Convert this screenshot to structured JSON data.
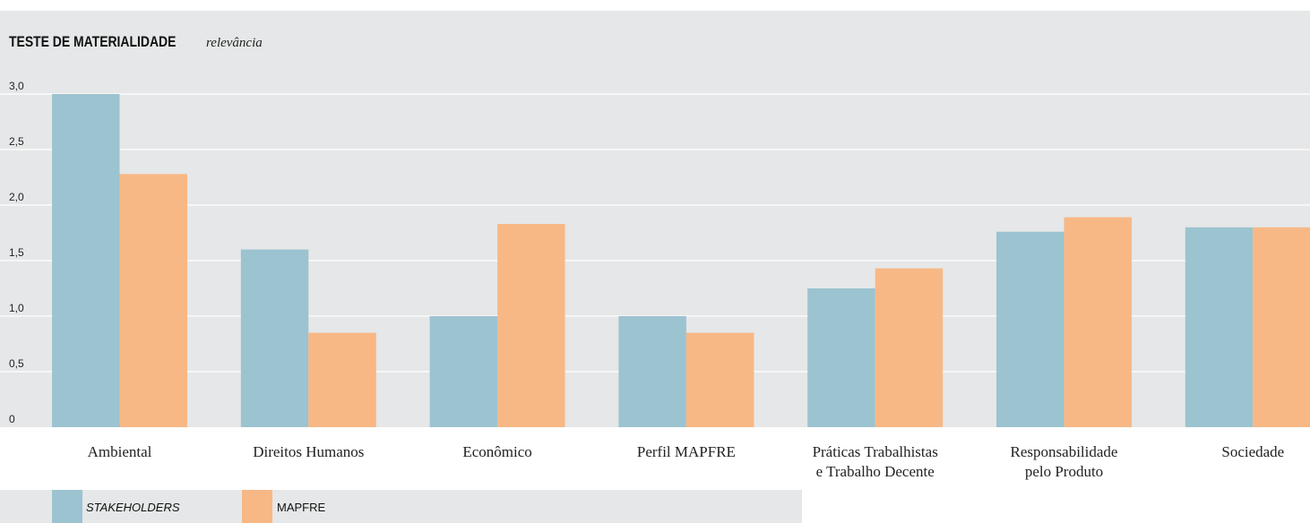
{
  "chart_data": {
    "type": "bar",
    "title": "TESTE DE MATERIALIDADE",
    "subtitle": "relevância",
    "categories": [
      [
        "Ambiental"
      ],
      [
        "Direitos Humanos"
      ],
      [
        "Econômico"
      ],
      [
        "Perfil MAPFRE"
      ],
      [
        "Práticas Trabalhistas",
        "e Trabalho Decente"
      ],
      [
        "Responsabilidade",
        "pelo Produto"
      ],
      [
        "Sociedade"
      ]
    ],
    "series": [
      {
        "name": "STAKEHOLDERS",
        "color": "#9cc3d0",
        "values": [
          3.0,
          1.6,
          1.0,
          1.0,
          1.25,
          1.76,
          1.8
        ]
      },
      {
        "name": "MAPFRE",
        "color": "#f7b886",
        "values": [
          2.28,
          0.85,
          1.83,
          0.85,
          1.43,
          1.89,
          1.8
        ]
      }
    ],
    "ylim": [
      0,
      3.0
    ],
    "yticks": [
      "0",
      "0,5",
      "1,0",
      "1,5",
      "2,0",
      "2,5",
      "3,0"
    ],
    "grid": true,
    "legend_position": "bottom-left"
  }
}
